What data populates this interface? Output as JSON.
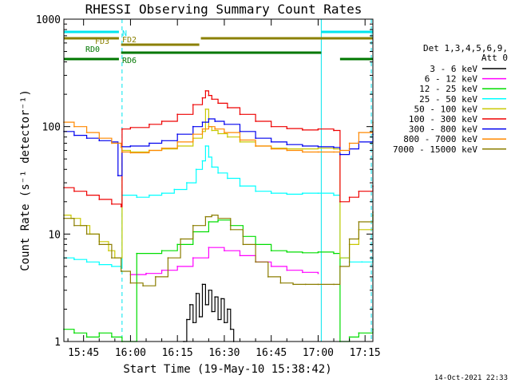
{
  "chart_data": {
    "type": "line",
    "title": "RHESSI Observing Summary Count Rates",
    "xlabel": "Start Time (19-May-10 15:38:42)",
    "ylabel": "Count Rate (s⁻¹ detector⁻¹)",
    "y_scale": "log",
    "ylim": [
      1,
      1000
    ],
    "xlim_minutes": [
      38.7,
      137.5
    ],
    "x_tick_labels": [
      "15:45",
      "16:00",
      "16:15",
      "16:30",
      "16:45",
      "17:00",
      "17:15"
    ],
    "x_ticks_minutes": [
      45,
      60,
      75,
      90,
      105,
      120,
      135
    ],
    "y_tick_labels": [
      "1",
      "10",
      "100",
      "1000"
    ],
    "y_ticks": [
      1,
      10,
      100,
      1000
    ],
    "legend_header": [
      "Det 1,3,4,5,6,9,",
      "Att 0"
    ],
    "legend_position": "right",
    "timestamp": "14-Oct-2021 22:33",
    "flags": [
      {
        "label": "N",
        "color": "#00e5ee",
        "segments": [
          [
            38.7,
            56.3
          ],
          [
            121.0,
            137.5
          ]
        ]
      },
      {
        "label": "FD2",
        "color": "#8b8000",
        "segments": [
          [
            38.7,
            56.3
          ],
          [
            82.5,
            137.5
          ]
        ]
      },
      {
        "label": "FD3",
        "color": "#8b8000",
        "segments": [
          [
            57.0,
            82.0
          ]
        ]
      },
      {
        "label": "RD0",
        "color": "#007700",
        "segments": [
          [
            57.0,
            121.0
          ]
        ]
      },
      {
        "label": "RD6",
        "color": "#007700",
        "segments": [
          [
            38.7,
            56.3
          ],
          [
            127.0,
            137.5
          ]
        ]
      }
    ],
    "vlines_solid": [
      38.7,
      121.0
    ],
    "vlines_dashed": [
      57.3,
      137.0
    ],
    "series": [
      {
        "name": "3 - 6 keV",
        "color": "#000000",
        "x": [
          77,
          78,
          79,
          80,
          81,
          82,
          83,
          84,
          85,
          86,
          87,
          88,
          89,
          90,
          91,
          92,
          93
        ],
        "y": [
          1.0,
          1.6,
          2.2,
          1.5,
          2.8,
          1.7,
          3.4,
          2.2,
          3.0,
          1.9,
          2.6,
          1.6,
          2.5,
          1.5,
          2.0,
          1.3,
          1.0
        ]
      },
      {
        "name": "6 - 12 keV",
        "color": "#ff00ff",
        "x": [
          60,
          65,
          70,
          75,
          80,
          85,
          90,
          95,
          100,
          105,
          110,
          115,
          120
        ],
        "y": [
          4.2,
          4.3,
          4.6,
          5.0,
          6.0,
          7.5,
          7.0,
          6.3,
          5.5,
          5.0,
          4.6,
          4.4,
          4.3
        ]
      },
      {
        "name": "12 - 25 keV",
        "color": "#00dd00",
        "x": [
          38.7,
          42,
          46,
          50,
          54,
          57.3,
          62,
          70,
          75,
          80,
          85,
          88,
          92,
          96,
          100,
          105,
          110,
          115,
          120,
          125,
          127,
          130,
          133,
          137.5
        ],
        "y": [
          1.3,
          1.2,
          1.1,
          1.2,
          1.1,
          1.0,
          6.6,
          7.0,
          8.0,
          10.5,
          13.0,
          13.5,
          12.0,
          9.5,
          8.0,
          7.0,
          6.8,
          6.7,
          6.8,
          6.6,
          1.0,
          1.1,
          1.2,
          1.3
        ]
      },
      {
        "name": "25 - 50 keV",
        "color": "#00ffff",
        "x": [
          38.7,
          42,
          46,
          50,
          54,
          57,
          57.3,
          62,
          66,
          70,
          74,
          78,
          81,
          83,
          84,
          85,
          86,
          88,
          91,
          95,
          100,
          105,
          110,
          115,
          120,
          125,
          127,
          130,
          134,
          137.5
        ],
        "y": [
          6.0,
          5.8,
          5.5,
          5.2,
          5.0,
          4.8,
          23,
          22,
          23,
          24,
          26,
          30,
          40,
          48,
          66,
          52,
          42,
          37,
          33,
          28,
          25,
          24,
          23.5,
          24,
          24,
          23,
          6.0,
          5.5,
          5.5,
          6.0
        ]
      },
      {
        "name": "50 - 100 keV",
        "color": "#c8c800",
        "x": [
          38.7,
          41,
          44,
          47,
          50,
          53,
          55,
          57.3,
          60,
          66,
          70,
          75,
          80,
          83,
          84,
          85,
          86,
          88,
          91,
          95,
          100,
          105,
          110,
          115,
          120,
          125,
          127,
          130,
          133,
          137.5
        ],
        "y": [
          15,
          14,
          12,
          10,
          8.5,
          7.0,
          6.0,
          60,
          58,
          60,
          62,
          66,
          78,
          90,
          145,
          100,
          92,
          86,
          80,
          72,
          66,
          63,
          62,
          62,
          63,
          62,
          6.0,
          8.0,
          11,
          15
        ]
      },
      {
        "name": "100 - 300 keV",
        "color": "#ee0000",
        "x": [
          38.7,
          42,
          46,
          50,
          54,
          57,
          57.3,
          60,
          66,
          70,
          75,
          80,
          83,
          84,
          85,
          86,
          88,
          91,
          95,
          100,
          105,
          110,
          115,
          120,
          125,
          127,
          130,
          133,
          137.5
        ],
        "y": [
          27,
          25,
          23,
          21,
          19,
          18,
          95,
          98,
          105,
          112,
          130,
          160,
          185,
          215,
          195,
          180,
          165,
          150,
          130,
          112,
          100,
          96,
          93,
          95,
          92,
          20,
          22,
          25,
          28
        ]
      },
      {
        "name": "300 - 800 keV",
        "color": "#0000ee",
        "x": [
          38.7,
          42,
          46,
          50,
          54,
          56,
          57.3,
          60,
          66,
          70,
          75,
          80,
          83,
          85,
          87,
          90,
          95,
          100,
          105,
          110,
          115,
          120,
          125,
          127,
          130,
          133,
          137.5
        ],
        "y": [
          90,
          83,
          78,
          74,
          72,
          35,
          65,
          66,
          70,
          74,
          85,
          100,
          110,
          118,
          112,
          105,
          90,
          78,
          72,
          68,
          66,
          65,
          64,
          55,
          62,
          72,
          85
        ]
      },
      {
        "name": "800 - 7000 keV",
        "color": "#ff8800",
        "x": [
          38.7,
          42,
          46,
          50,
          54,
          57,
          57.3,
          60,
          66,
          70,
          75,
          80,
          83,
          85,
          87,
          90,
          95,
          100,
          105,
          110,
          115,
          120,
          125,
          127,
          130,
          133,
          137.5
        ],
        "y": [
          110,
          100,
          88,
          78,
          70,
          64,
          58,
          57,
          60,
          63,
          72,
          85,
          95,
          100,
          95,
          88,
          75,
          66,
          62,
          60,
          58,
          58,
          58,
          60,
          70,
          88,
          110
        ]
      },
      {
        "name": "7000 - 15000 keV",
        "color": "#8b7d00",
        "x": [
          38.7,
          42,
          46,
          50,
          54,
          57,
          60,
          64,
          68,
          72,
          76,
          80,
          84,
          86,
          88,
          92,
          96,
          100,
          104,
          108,
          112,
          116,
          120,
          125,
          127,
          130,
          133,
          137.5
        ],
        "y": [
          14,
          12,
          10,
          8.0,
          6.0,
          4.5,
          3.5,
          3.3,
          4.0,
          6.0,
          9.0,
          12,
          14.5,
          15,
          14,
          11,
          8.0,
          5.5,
          4.0,
          3.5,
          3.4,
          3.4,
          3.4,
          3.4,
          5.0,
          9.0,
          13,
          16
        ]
      }
    ]
  }
}
